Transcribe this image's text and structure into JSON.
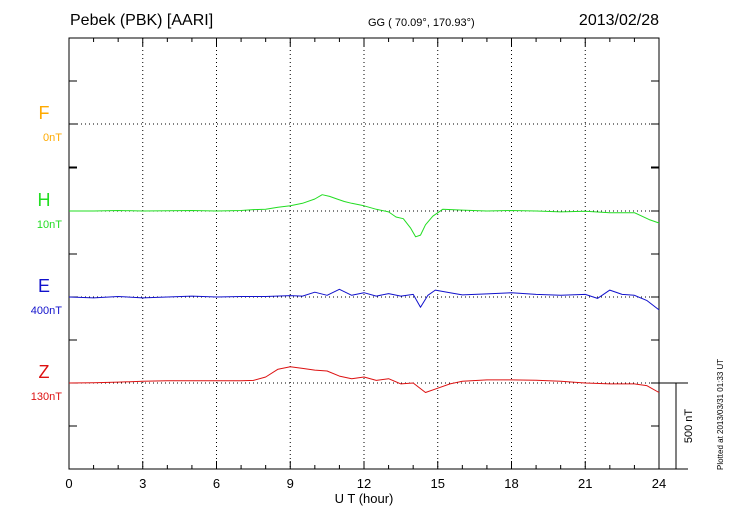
{
  "header": {
    "title": "Pebek (PBK)  [AARI]",
    "coords": "GG ( 70.09°, 170.93°)",
    "date": "2013/02/28"
  },
  "footer": {
    "plotted": "Plotted at 2013/03/31 01:33 UT"
  },
  "colors": {
    "F": "#ffaa00",
    "H": "#22dd22",
    "E": "#1111cc",
    "Z": "#dd1111",
    "grid": "#000000"
  },
  "chart_data": {
    "type": "line",
    "xlabel": "U T (hour)",
    "xlim": [
      0,
      24
    ],
    "xticks": [
      "0",
      "3",
      "6",
      "9",
      "12",
      "15",
      "18",
      "21",
      "24"
    ],
    "scale_bar": {
      "label": "500 nT",
      "value_nT": 500
    },
    "series": [
      {
        "name": "F",
        "offset_label": "0nT",
        "color": "#ffaa00",
        "x": [],
        "y": []
      },
      {
        "name": "H",
        "offset_label": "10nT",
        "color": "#22dd22",
        "x": [
          0,
          1,
          2,
          3,
          4,
          5,
          6,
          7,
          7.5,
          8,
          8.5,
          9,
          9.5,
          10,
          10.3,
          10.6,
          10.9,
          11.2,
          11.5,
          12,
          12.5,
          13,
          13.3,
          13.6,
          13.9,
          14.1,
          14.3,
          14.5,
          14.8,
          15.2,
          16,
          17,
          18,
          19,
          20,
          21,
          22,
          23,
          23.6,
          24
        ],
        "y": [
          0,
          0,
          3,
          0,
          2,
          3,
          0,
          3,
          8,
          10,
          22,
          30,
          45,
          70,
          95,
          85,
          70,
          55,
          45,
          30,
          10,
          -5,
          -35,
          -45,
          -100,
          -150,
          -140,
          -80,
          -30,
          10,
          5,
          0,
          3,
          0,
          -5,
          -2,
          -10,
          -10,
          -50,
          -70
        ]
      },
      {
        "name": "E",
        "offset_label": "400nT",
        "color": "#1111cc",
        "x": [
          0,
          1,
          2,
          3,
          4,
          5,
          6,
          7,
          8,
          9,
          9.5,
          10,
          10.5,
          11,
          11.5,
          12,
          12.5,
          13,
          13.5,
          14,
          14.3,
          14.6,
          14.9,
          15.5,
          16,
          17,
          18,
          19,
          20,
          21,
          21.5,
          22,
          22.5,
          23,
          23.5,
          24
        ],
        "y": [
          0,
          -5,
          3,
          -5,
          0,
          5,
          0,
          3,
          3,
          8,
          5,
          28,
          10,
          45,
          10,
          25,
          5,
          20,
          5,
          15,
          -60,
          10,
          40,
          25,
          12,
          18,
          25,
          15,
          10,
          15,
          -8,
          40,
          15,
          10,
          -20,
          -75
        ]
      },
      {
        "name": "Z",
        "offset_label": "130nT",
        "color": "#dd1111",
        "x": [
          0,
          1,
          2,
          3,
          4,
          5,
          6,
          7,
          7.5,
          8,
          8.5,
          9,
          9.5,
          10,
          10.5,
          11,
          11.5,
          12,
          12.5,
          13,
          13.5,
          14,
          14.5,
          15,
          15.5,
          16,
          17,
          18,
          19,
          20,
          21,
          22,
          23,
          23.5,
          24
        ],
        "y": [
          0,
          2,
          5,
          10,
          13,
          13,
          13,
          13,
          15,
          35,
          80,
          95,
          85,
          75,
          70,
          40,
          25,
          35,
          15,
          25,
          -5,
          0,
          -55,
          -30,
          -5,
          10,
          18,
          18,
          16,
          10,
          0,
          -5,
          -5,
          -15,
          -55
        ]
      }
    ]
  }
}
